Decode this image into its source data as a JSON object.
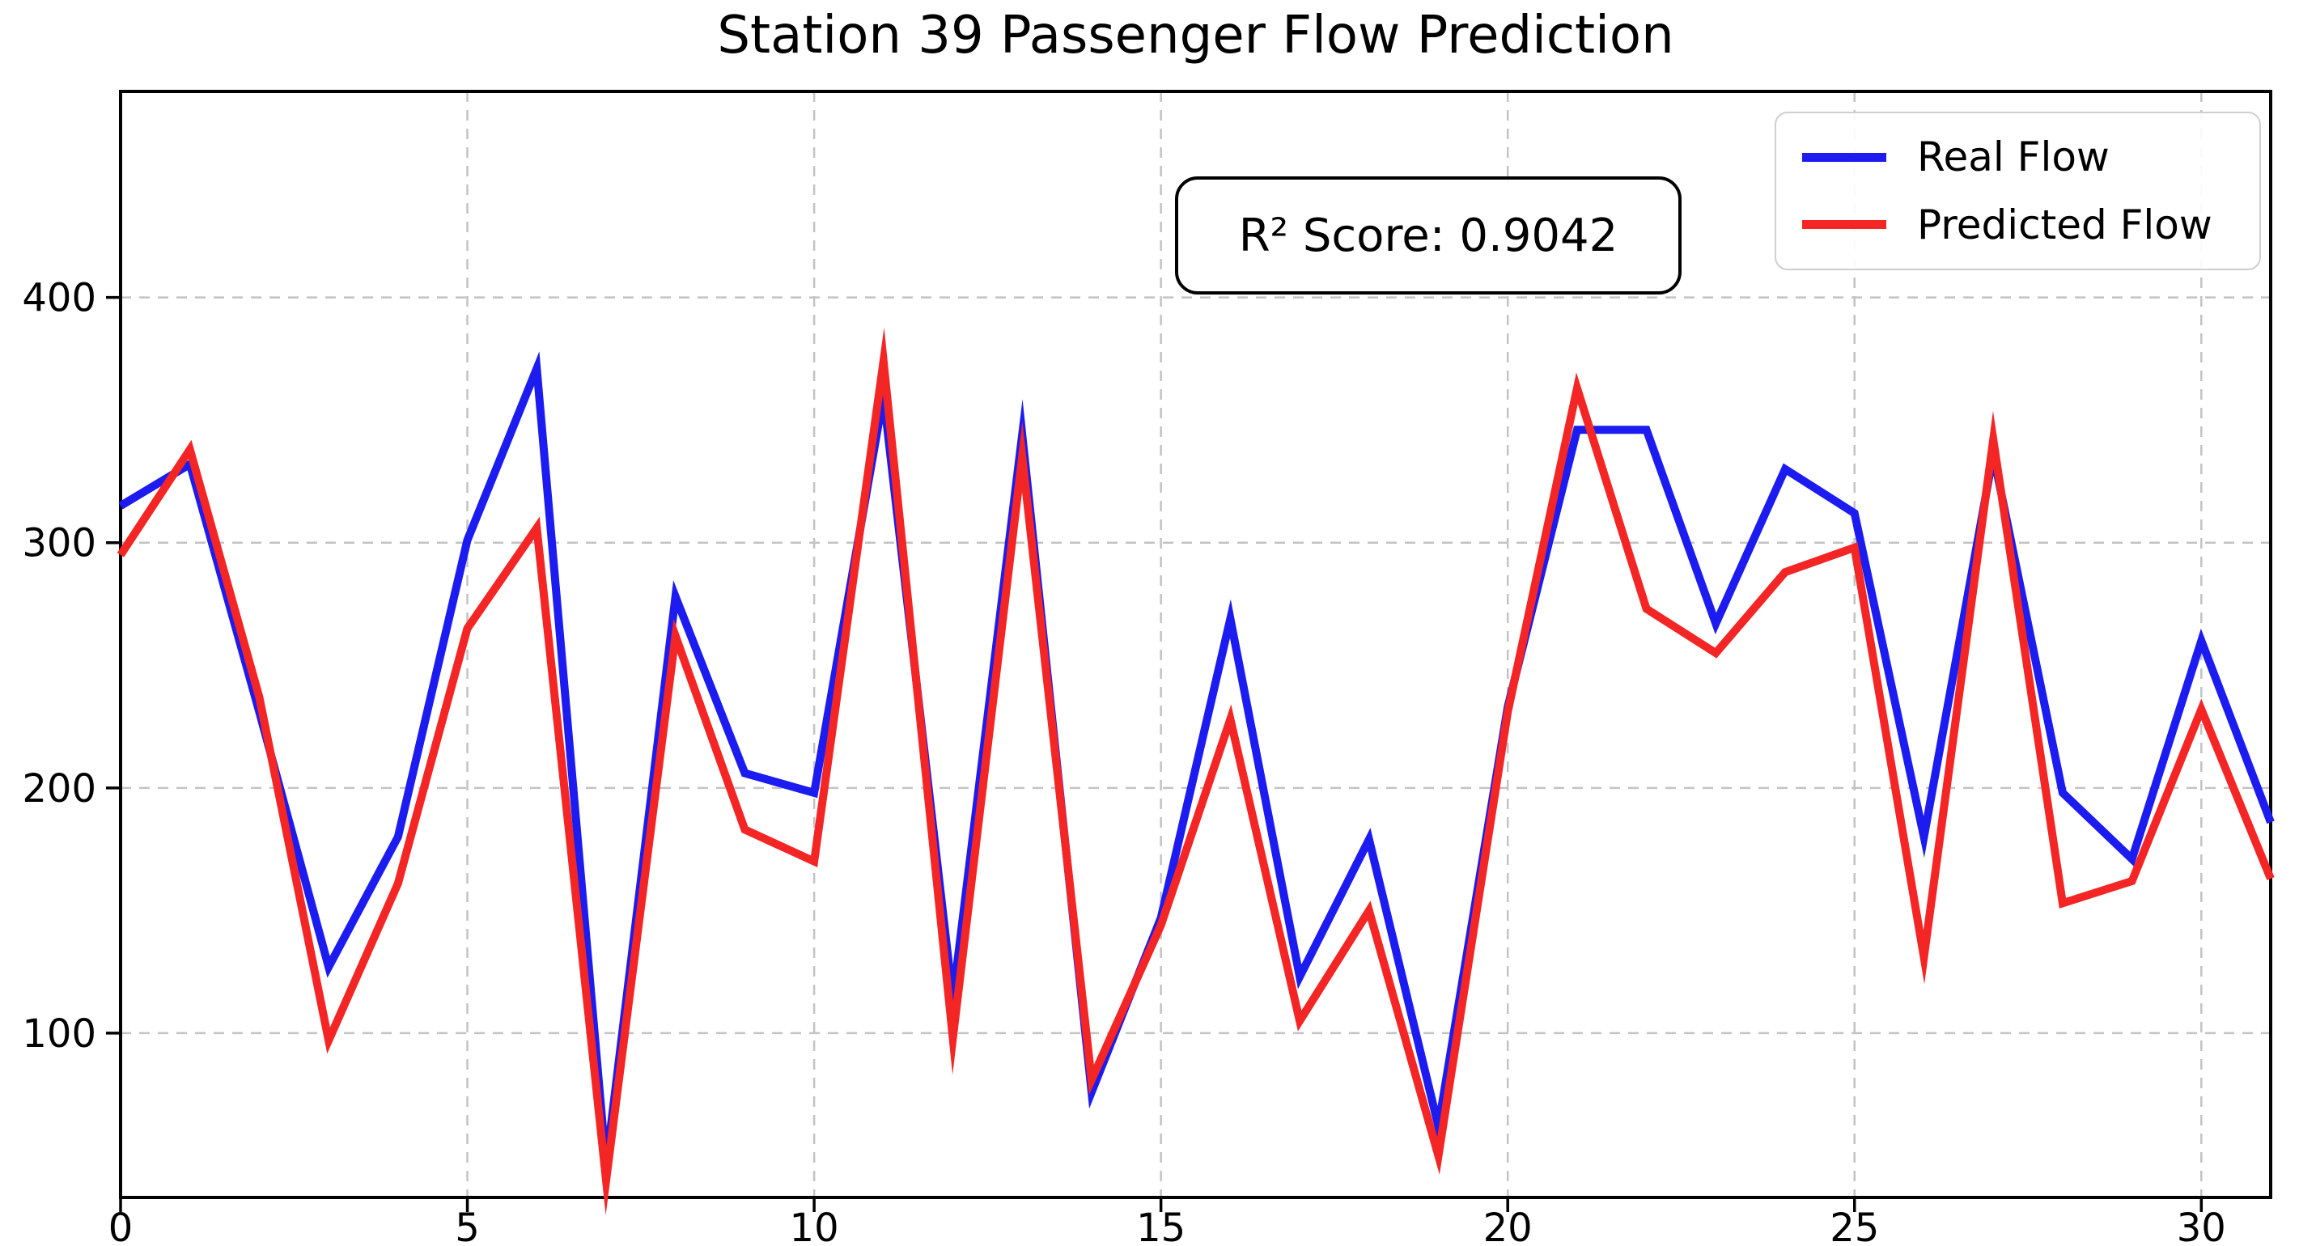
{
  "chart_data": {
    "type": "line",
    "title": "Station 39 Passenger Flow Prediction",
    "xlabel": "",
    "ylabel": "",
    "x": [
      0,
      1,
      2,
      3,
      4,
      5,
      6,
      7,
      8,
      9,
      10,
      11,
      12,
      13,
      14,
      15,
      16,
      17,
      18,
      19,
      20,
      21,
      22,
      23,
      24,
      25,
      26,
      27,
      28,
      29,
      30,
      31
    ],
    "series": [
      {
        "name": "Real Flow",
        "color": "#1c1cf0",
        "values": [
          315,
          332,
          231,
          127,
          180,
          301,
          371,
          46,
          278,
          206,
          198,
          360,
          114,
          344,
          76,
          147,
          269,
          123,
          179,
          62,
          233,
          346,
          346,
          267,
          330,
          312,
          180,
          336,
          198,
          171,
          260,
          186
        ]
      },
      {
        "name": "Predicted Flow",
        "color": "#f42525",
        "values": [
          295,
          338,
          237,
          97,
          161,
          265,
          306,
          40,
          262,
          183,
          170,
          374,
          98,
          335,
          81,
          144,
          228,
          105,
          150,
          50,
          231,
          363,
          273,
          255,
          288,
          298,
          131,
          342,
          153,
          162,
          232,
          163
        ]
      }
    ],
    "xlim": [
      0,
      31
    ],
    "ylim": [
      33,
      484
    ],
    "xticks": [
      0,
      5,
      10,
      15,
      20,
      25,
      30
    ],
    "yticks": [
      100,
      200,
      300,
      400
    ],
    "grid": true,
    "grid_style": "dashed",
    "legend_position": "upper right"
  },
  "annotation": {
    "text": "R² Score: 0.9042"
  }
}
